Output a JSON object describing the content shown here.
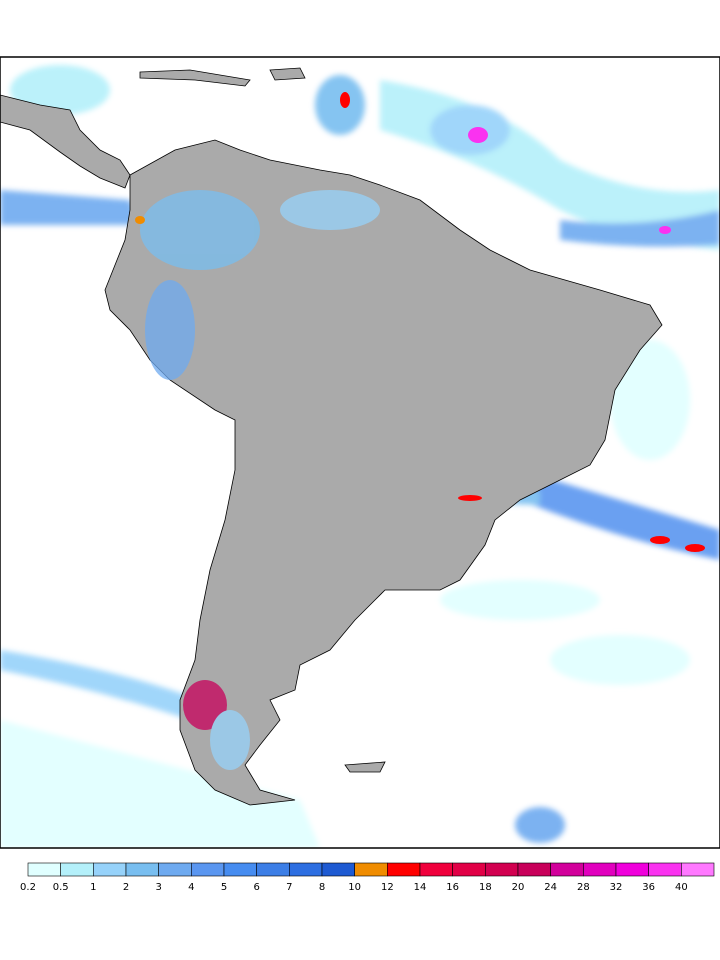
{
  "legend": {
    "labels": [
      0.2,
      0.5,
      1,
      2,
      3,
      4,
      5,
      6,
      7,
      8,
      10,
      12,
      14,
      16,
      18,
      20,
      24,
      28,
      32,
      36,
      40
    ],
    "colors": [
      "#e0ffff",
      "#b4f0fa",
      "#96d2fa",
      "#78bef0",
      "#6eaaf0",
      "#5a96f0",
      "#468cf0",
      "#3c7ee6",
      "#2d6ee1",
      "#1e5ad2",
      "#f08c00",
      "#ff0000",
      "#f0003c",
      "#e10046",
      "#d20050",
      "#c8005a",
      "#d2009b",
      "#e100be",
      "#f000dc",
      "#fa32f0",
      "#ff78ff"
    ]
  }
}
